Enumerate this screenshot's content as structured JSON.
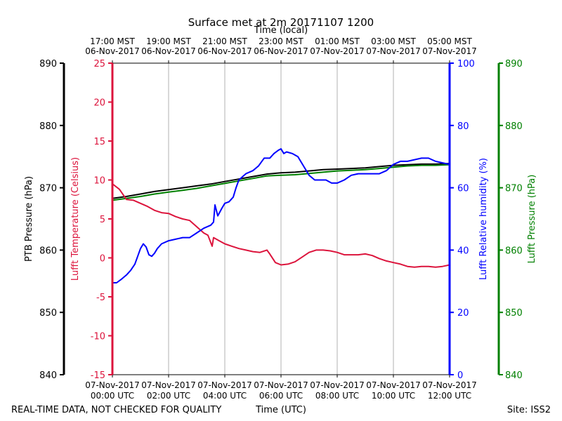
{
  "chart_data": {
    "type": "line",
    "title": "Surface met at 2m 20171107 1200",
    "top_axis_label": "Time (local)",
    "bottom_axis_label": "Time (UTC)",
    "footer_left": "REAL-TIME DATA, NOT CHECKED FOR QUALITY",
    "footer_right": "Site: ISS2",
    "x_range_hours": [
      0,
      12
    ],
    "top_ticks": [
      {
        "h": 0,
        "l1": "17:00 MST",
        "l2": "06-Nov-2017"
      },
      {
        "h": 2,
        "l1": "19:00 MST",
        "l2": "06-Nov-2017"
      },
      {
        "h": 4,
        "l1": "21:00 MST",
        "l2": "06-Nov-2017"
      },
      {
        "h": 6,
        "l1": "23:00 MST",
        "l2": "06-Nov-2017"
      },
      {
        "h": 8,
        "l1": "01:00 MST",
        "l2": "07-Nov-2017"
      },
      {
        "h": 10,
        "l1": "03:00 MST",
        "l2": "07-Nov-2017"
      },
      {
        "h": 12,
        "l1": "05:00 MST",
        "l2": "07-Nov-2017"
      }
    ],
    "bottom_ticks": [
      {
        "h": 0,
        "l1": "07-Nov-2017",
        "l2": "00:00 UTC"
      },
      {
        "h": 2,
        "l1": "07-Nov-2017",
        "l2": "02:00 UTC"
      },
      {
        "h": 4,
        "l1": "07-Nov-2017",
        "l2": "04:00 UTC"
      },
      {
        "h": 6,
        "l1": "07-Nov-2017",
        "l2": "06:00 UTC"
      },
      {
        "h": 8,
        "l1": "07-Nov-2017",
        "l2": "08:00 UTC"
      },
      {
        "h": 10,
        "l1": "07-Nov-2017",
        "l2": "10:00 UTC"
      },
      {
        "h": 12,
        "l1": "07-Nov-2017",
        "l2": "12:00 UTC"
      }
    ],
    "axes": {
      "ptb": {
        "label": "PTB Pressure (hPa)",
        "range": [
          840,
          890
        ],
        "ticks": [
          840,
          850,
          860,
          870,
          880,
          890
        ],
        "color": "#000000"
      },
      "temp": {
        "label": "Lufft Temperature (Celsius)",
        "range": [
          -15,
          25
        ],
        "ticks": [
          -15,
          -10,
          -5,
          0,
          5,
          10,
          15,
          20,
          25
        ],
        "color": "#dc143c"
      },
      "rh": {
        "label": "Lufft Relative humidity (%)",
        "range": [
          0,
          100
        ],
        "ticks": [
          0,
          20,
          40,
          60,
          80,
          100
        ],
        "color": "#0000ff"
      },
      "pres": {
        "label": "Lufft Pressure (hPa)",
        "range": [
          840,
          890
        ],
        "ticks": [
          840,
          850,
          860,
          870,
          880,
          890
        ],
        "color": "#008000"
      }
    },
    "series": [
      {
        "name": "PTB Pressure",
        "axis": "ptb",
        "color": "#000000",
        "x": [
          0,
          0.5,
          1,
          1.5,
          2,
          2.5,
          3,
          3.5,
          4,
          4.5,
          5,
          5.5,
          6,
          6.5,
          7,
          7.5,
          8,
          8.5,
          9,
          9.5,
          10,
          10.5,
          11,
          11.5,
          12
        ],
        "y": [
          868.3,
          868.6,
          869.0,
          869.4,
          869.7,
          870.0,
          870.3,
          870.6,
          871.0,
          871.4,
          871.8,
          872.2,
          872.4,
          872.5,
          872.7,
          872.9,
          873.0,
          873.1,
          873.2,
          873.4,
          873.6,
          873.7,
          873.8,
          873.8,
          873.9
        ]
      },
      {
        "name": "Lufft Pressure",
        "axis": "pres",
        "color": "#008000",
        "x": [
          0,
          0.5,
          1,
          1.5,
          2,
          2.5,
          3,
          3.5,
          4,
          4.5,
          5,
          5.5,
          6,
          6.5,
          7,
          7.5,
          8,
          8.5,
          9,
          9.5,
          10,
          10.5,
          11,
          11.5,
          12
        ],
        "y": [
          868.0,
          868.3,
          868.6,
          869.0,
          869.3,
          869.6,
          869.9,
          870.3,
          870.7,
          871.1,
          871.5,
          871.9,
          872.0,
          872.1,
          872.3,
          872.5,
          872.7,
          872.8,
          872.9,
          873.1,
          873.3,
          873.5,
          873.6,
          873.6,
          873.7
        ]
      },
      {
        "name": "Lufft Temperature",
        "axis": "temp",
        "color": "#dc143c",
        "x": [
          0,
          0.25,
          0.5,
          0.75,
          1,
          1.25,
          1.5,
          1.75,
          2,
          2.25,
          2.5,
          2.75,
          3,
          3.25,
          3.4,
          3.55,
          3.6,
          3.8,
          4,
          4.25,
          4.5,
          4.75,
          5,
          5.25,
          5.5,
          5.6,
          5.8,
          6,
          6.25,
          6.5,
          6.75,
          7,
          7.25,
          7.5,
          7.75,
          8,
          8.25,
          8.5,
          8.75,
          9,
          9.25,
          9.5,
          9.75,
          10,
          10.25,
          10.5,
          10.75,
          11,
          11.25,
          11.5,
          11.75,
          12
        ],
        "y": [
          9.5,
          8.8,
          7.5,
          7.4,
          7.0,
          6.6,
          6.1,
          5.8,
          5.7,
          5.3,
          5.0,
          4.8,
          4.0,
          3.2,
          2.9,
          1.5,
          2.6,
          2.2,
          1.8,
          1.5,
          1.2,
          1.0,
          0.8,
          0.7,
          1.0,
          0.5,
          -0.6,
          -0.9,
          -0.8,
          -0.5,
          0.1,
          0.7,
          1.0,
          1.0,
          0.9,
          0.7,
          0.4,
          0.4,
          0.4,
          0.5,
          0.3,
          -0.1,
          -0.4,
          -0.6,
          -0.8,
          -1.1,
          -1.2,
          -1.1,
          -1.1,
          -1.2,
          -1.1,
          -0.9
        ]
      },
      {
        "name": "Lufft Relative humidity",
        "axis": "rh",
        "color": "#0000ff",
        "x": [
          0,
          0.15,
          0.3,
          0.5,
          0.65,
          0.8,
          0.9,
          1.0,
          1.1,
          1.2,
          1.3,
          1.4,
          1.5,
          1.6,
          1.75,
          2.0,
          2.25,
          2.5,
          2.75,
          3.0,
          3.25,
          3.5,
          3.6,
          3.65,
          3.75,
          3.9,
          4.0,
          4.15,
          4.3,
          4.4,
          4.5,
          4.75,
          5.0,
          5.2,
          5.4,
          5.6,
          5.75,
          5.9,
          6.0,
          6.1,
          6.2,
          6.4,
          6.6,
          6.8,
          7.0,
          7.2,
          7.4,
          7.6,
          7.8,
          8.0,
          8.25,
          8.5,
          8.75,
          9.0,
          9.25,
          9.5,
          9.75,
          10.0,
          10.25,
          10.5,
          10.75,
          11.0,
          11.25,
          11.5,
          11.75,
          12.0
        ],
        "y": [
          29.5,
          29.5,
          30.5,
          32.0,
          33.5,
          35.5,
          38.0,
          40.5,
          42.0,
          41.0,
          38.5,
          38.0,
          39.0,
          40.5,
          42.0,
          43.0,
          43.5,
          44.0,
          44.0,
          45.5,
          47.0,
          48.0,
          49.0,
          54.5,
          51.0,
          53.5,
          55.0,
          55.5,
          57.0,
          60.0,
          62.5,
          64.5,
          65.5,
          67.0,
          69.5,
          69.5,
          71.0,
          72.0,
          72.5,
          71.0,
          71.5,
          71.0,
          70.0,
          67.0,
          64.0,
          62.5,
          62.5,
          62.5,
          61.5,
          61.5,
          62.5,
          64.0,
          64.5,
          64.5,
          64.5,
          64.5,
          65.5,
          67.5,
          68.5,
          68.5,
          69.0,
          69.5,
          69.5,
          68.5,
          68.0,
          67.5
        ]
      }
    ]
  }
}
